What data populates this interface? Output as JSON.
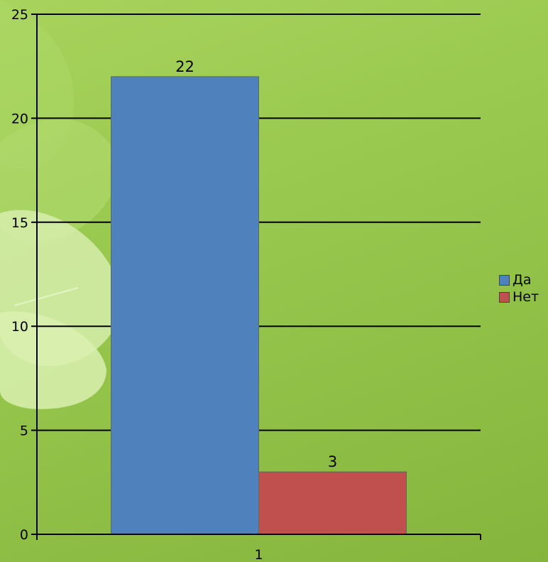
{
  "chart_data": {
    "type": "bar",
    "categories": [
      "1"
    ],
    "series": [
      {
        "name": "Да",
        "values": [
          22
        ],
        "color": "#4f81bd"
      },
      {
        "name": "Нет",
        "values": [
          3
        ],
        "color": "#c0504d"
      }
    ],
    "ylim": [
      0,
      25
    ],
    "yticks": [
      "0",
      "5",
      "10",
      "15",
      "20",
      "25"
    ],
    "grid": true,
    "legend_position": "right"
  }
}
